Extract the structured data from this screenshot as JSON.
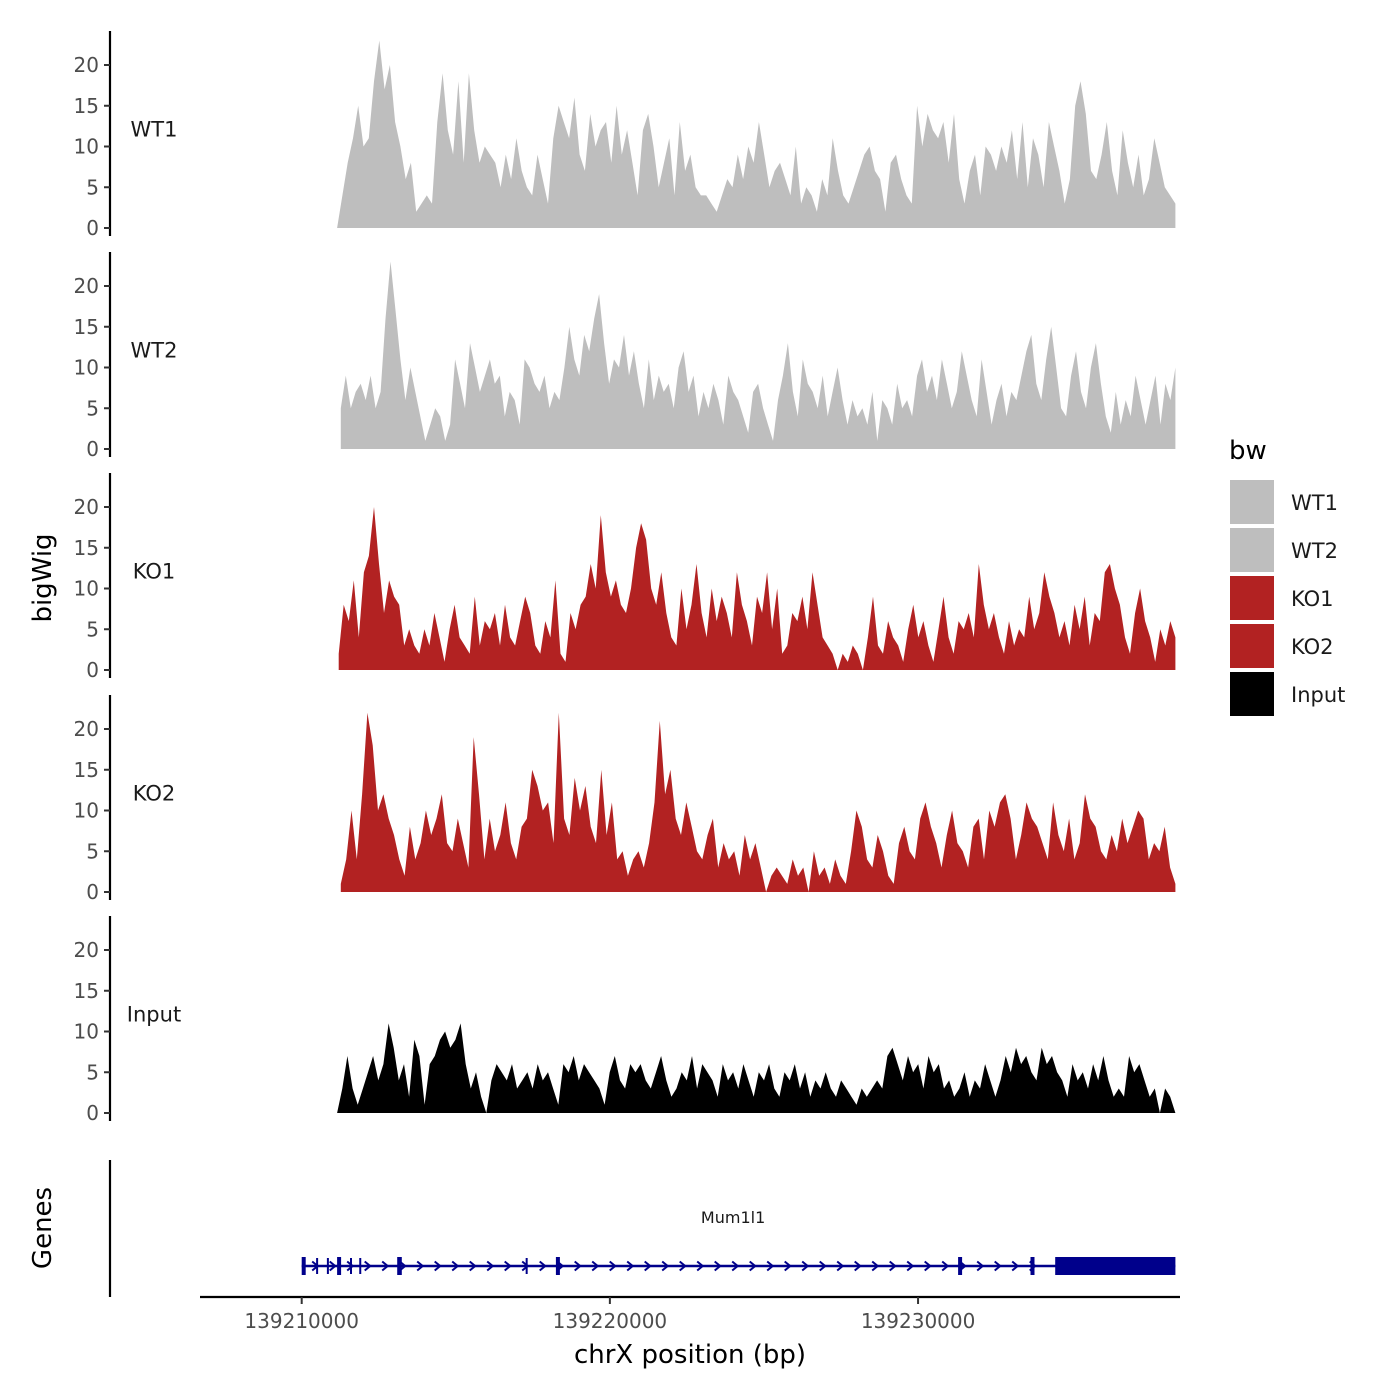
{
  "chart_data": {
    "type": "area",
    "title": "",
    "ylabel": "bigWig",
    "xlabel": "chrX position (bp)",
    "ylim": [
      0,
      23
    ],
    "yticks": [
      0,
      5,
      10,
      15,
      20
    ],
    "xlim": [
      139206700,
      139238500
    ],
    "xticks": [
      139210000,
      139220000,
      139230000
    ],
    "x_tick_labels": [
      "139210000",
      "139220000",
      "139230000"
    ],
    "legend": {
      "title": "bw",
      "position": "right",
      "entries": [
        {
          "label": "WT1",
          "color": "#bebebe"
        },
        {
          "label": "WT2",
          "color": "#bebebe"
        },
        {
          "label": "KO1",
          "color": "#b22222"
        },
        {
          "label": "KO2",
          "color": "#b22222"
        },
        {
          "label": "Input",
          "color": "#000000"
        }
      ]
    },
    "tracks": [
      {
        "name": "WT1",
        "color": "#bebebe",
        "x_start": 139211150,
        "x_end": 139238350,
        "values": [
          0,
          4,
          8,
          11,
          15,
          10,
          11,
          18,
          23,
          17,
          20,
          13,
          10,
          6,
          8,
          2,
          3,
          4,
          3,
          13,
          19,
          12,
          9,
          18,
          8,
          19,
          12,
          8,
          10,
          9,
          8,
          5,
          9,
          6,
          11,
          7,
          5,
          4,
          9,
          6,
          3,
          11,
          15,
          13,
          11,
          16,
          9,
          7,
          14,
          10,
          12,
          13,
          8,
          15,
          9,
          12,
          8,
          4,
          12,
          14,
          10,
          5,
          8,
          11,
          4,
          13,
          7,
          9,
          5,
          4,
          4,
          3,
          2,
          4,
          6,
          5,
          9,
          6,
          10,
          8,
          13,
          9,
          5,
          7,
          8,
          6,
          4,
          10,
          3,
          5,
          4,
          2,
          6,
          4,
          11,
          7,
          4,
          3,
          5,
          7,
          9,
          10,
          7,
          6,
          2,
          8,
          9,
          6,
          4,
          3,
          15,
          10,
          14,
          12,
          11,
          13,
          8,
          14,
          6,
          3,
          7,
          9,
          4,
          10,
          9,
          7,
          10,
          8,
          12,
          6,
          13,
          5,
          11,
          9,
          5,
          13,
          10,
          7,
          3,
          6,
          15,
          18,
          14,
          7,
          6,
          9,
          13,
          7,
          4,
          12,
          8,
          5,
          9,
          4,
          6,
          11,
          8,
          5,
          4,
          3
        ]
      },
      {
        "name": "WT2",
        "color": "#bebebe",
        "x_start": 139211270,
        "x_end": 139238350,
        "values": [
          5,
          9,
          5,
          7,
          8,
          6,
          9,
          5,
          7,
          16,
          23,
          17,
          11,
          6,
          10,
          7,
          4,
          1,
          3,
          5,
          4,
          1,
          3,
          11,
          8,
          5,
          13,
          10,
          7,
          9,
          11,
          8,
          9,
          4,
          7,
          6,
          3,
          11,
          10,
          8,
          7,
          9,
          5,
          7,
          6,
          10,
          15,
          11,
          9,
          14,
          12,
          16,
          19,
          13,
          8,
          11,
          10,
          14,
          9,
          12,
          8,
          5,
          11,
          6,
          9,
          7,
          8,
          5,
          10,
          12,
          7,
          9,
          4,
          7,
          5,
          8,
          6,
          3,
          9,
          7,
          6,
          4,
          2,
          7,
          8,
          5,
          3,
          1,
          6,
          9,
          13,
          7,
          4,
          11,
          8,
          7,
          5,
          9,
          4,
          7,
          10,
          6,
          3,
          6,
          4,
          5,
          3,
          7,
          1,
          6,
          5,
          3,
          8,
          5,
          6,
          4,
          9,
          11,
          7,
          9,
          6,
          11,
          8,
          5,
          7,
          12,
          9,
          6,
          4,
          11,
          7,
          3,
          6,
          8,
          4,
          7,
          6,
          9,
          12,
          14,
          8,
          6,
          11,
          15,
          10,
          5,
          4,
          9,
          12,
          7,
          5,
          10,
          13,
          8,
          4,
          2,
          7,
          3,
          6,
          4,
          9,
          6,
          3,
          6,
          9,
          3,
          8,
          6,
          10
        ]
      },
      {
        "name": "KO1",
        "color": "#b22222",
        "x_start": 139211200,
        "x_end": 139238350,
        "values": [
          2,
          8,
          6,
          11,
          4,
          12,
          14,
          20,
          13,
          7,
          11,
          9,
          8,
          3,
          5,
          3,
          2,
          5,
          3,
          7,
          4,
          1,
          5,
          8,
          4,
          3,
          2,
          9,
          3,
          6,
          5,
          7,
          3,
          8,
          4,
          3,
          6,
          9,
          7,
          3,
          2,
          6,
          4,
          11,
          2,
          1,
          7,
          5,
          8,
          9,
          13,
          10,
          19,
          12,
          9,
          11,
          8,
          7,
          10,
          15,
          18,
          16,
          10,
          8,
          12,
          7,
          4,
          3,
          10,
          5,
          8,
          13,
          7,
          4,
          10,
          6,
          9,
          7,
          4,
          12,
          8,
          6,
          3,
          9,
          7,
          12,
          5,
          10,
          2,
          3,
          7,
          6,
          9,
          5,
          12,
          8,
          4,
          3,
          2,
          0,
          2,
          1,
          3,
          2,
          0,
          4,
          9,
          3,
          2,
          6,
          4,
          3,
          1,
          5,
          8,
          4,
          6,
          3,
          1,
          5,
          9,
          4,
          2,
          6,
          5,
          7,
          4,
          13,
          8,
          5,
          7,
          4,
          2,
          6,
          3,
          5,
          4,
          9,
          5,
          7,
          12,
          9,
          7,
          4,
          6,
          3,
          8,
          5,
          9,
          3,
          7,
          6,
          12,
          13,
          10,
          8,
          4,
          2,
          7,
          10,
          6,
          4,
          1,
          5,
          3,
          6,
          4
        ]
      },
      {
        "name": "KO2",
        "color": "#b22222",
        "x_start": 139211270,
        "x_end": 139238350,
        "values": [
          1,
          4,
          10,
          4,
          12,
          22,
          18,
          10,
          12,
          9,
          7,
          4,
          2,
          8,
          4,
          6,
          10,
          7,
          9,
          12,
          6,
          5,
          9,
          6,
          3,
          19,
          12,
          4,
          9,
          5,
          7,
          11,
          6,
          4,
          8,
          9,
          15,
          13,
          10,
          11,
          6,
          22,
          9,
          7,
          14,
          10,
          13,
          8,
          6,
          15,
          7,
          11,
          4,
          5,
          2,
          4,
          5,
          3,
          6,
          11,
          21,
          12,
          15,
          9,
          7,
          11,
          8,
          5,
          4,
          7,
          9,
          3,
          6,
          4,
          5,
          2,
          7,
          4,
          6,
          3,
          0,
          2,
          3,
          2,
          1,
          4,
          2,
          3,
          0,
          5,
          2,
          3,
          1,
          4,
          2,
          1,
          5,
          10,
          8,
          4,
          3,
          7,
          5,
          2,
          1,
          6,
          8,
          5,
          4,
          9,
          11,
          8,
          6,
          3,
          7,
          10,
          6,
          5,
          3,
          8,
          9,
          4,
          10,
          8,
          11,
          12,
          9,
          4,
          7,
          11,
          9,
          8,
          6,
          4,
          11,
          7,
          5,
          9,
          4,
          6,
          12,
          9,
          8,
          5,
          4,
          7,
          5,
          9,
          6,
          8,
          10,
          9,
          4,
          6,
          5,
          8,
          3,
          1
        ]
      },
      {
        "name": "Input",
        "color": "#000000",
        "x_start": 139211150,
        "x_end": 139238350,
        "values": [
          0,
          3,
          7,
          3,
          1,
          3,
          5,
          7,
          4,
          6,
          11,
          8,
          4,
          6,
          2,
          9,
          7,
          1,
          6,
          7,
          9,
          10,
          8,
          9,
          11,
          6,
          3,
          5,
          2,
          0,
          4,
          6,
          5,
          4,
          6,
          3,
          4,
          5,
          3,
          6,
          4,
          5,
          3,
          1,
          6,
          5,
          7,
          4,
          6,
          5,
          4,
          3,
          1,
          5,
          7,
          4,
          3,
          6,
          5,
          6,
          4,
          3,
          5,
          7,
          4,
          2,
          3,
          5,
          4,
          7,
          3,
          6,
          5,
          4,
          2,
          6,
          4,
          5,
          3,
          6,
          4,
          2,
          5,
          4,
          6,
          3,
          2,
          5,
          4,
          6,
          3,
          5,
          2,
          4,
          3,
          5,
          3,
          2,
          4,
          3,
          2,
          1,
          3,
          2,
          3,
          4,
          3,
          7,
          8,
          6,
          4,
          7,
          5,
          6,
          3,
          7,
          5,
          6,
          3,
          4,
          2,
          3,
          5,
          2,
          4,
          3,
          6,
          4,
          2,
          4,
          7,
          5,
          8,
          6,
          7,
          5,
          4,
          8,
          6,
          7,
          5,
          4,
          2,
          6,
          4,
          5,
          3,
          6,
          4,
          7,
          4,
          2,
          3,
          2,
          7,
          5,
          6,
          4,
          2,
          3,
          0,
          3,
          2,
          0
        ]
      }
    ],
    "gene_track": {
      "label": "Genes",
      "gene_name": "Mum1l1",
      "color": "#00008b",
      "strand": "+",
      "start": 139210000,
      "end": 139238350,
      "exons": [
        [
          139210000,
          139210100
        ],
        [
          139211150,
          139211250
        ],
        [
          139213100,
          139213250
        ],
        [
          139218250,
          139218350
        ],
        [
          139231300,
          139231400
        ],
        [
          139233650,
          139233750
        ],
        [
          139234450,
          139238350
        ]
      ],
      "minor_ticks": [
        139210500,
        139210850,
        139211600,
        139211900,
        139217300
      ]
    }
  }
}
